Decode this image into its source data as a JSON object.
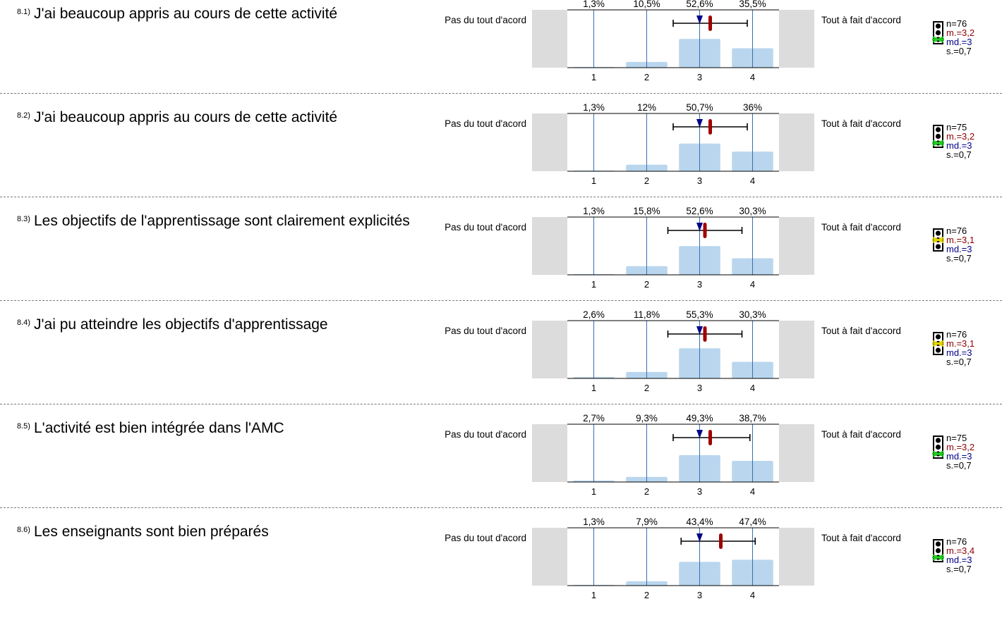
{
  "chart_data": [
    {
      "type": "bar",
      "number": "8.1)",
      "question": "J'ai beaucoup appris au cours de cette activité",
      "left_label": "Pas du tout d'acord",
      "right_label": "Tout à fait d'accord",
      "categories": [
        "1",
        "2",
        "3",
        "4"
      ],
      "values": [
        1.3,
        10.5,
        52.6,
        35.5
      ],
      "value_labels": [
        "1,3%",
        "10,5%",
        "52,6%",
        "35,5%"
      ],
      "mean": 3.2,
      "median": 3,
      "sd": 0.7,
      "interval": [
        2.5,
        3.9
      ],
      "stats": {
        "n": "n=76",
        "mean": "m.=3,2",
        "median": "md.=3",
        "sd": "s.=0,7"
      },
      "indicator": "green",
      "xlim": [
        0.5,
        4.5
      ]
    },
    {
      "type": "bar",
      "number": "8.2)",
      "question": "J'ai beaucoup  appris au cours de cette activité",
      "left_label": "Pas du tout d'acord",
      "right_label": "Tout à fait d'accord",
      "categories": [
        "1",
        "2",
        "3",
        "4"
      ],
      "values": [
        1.3,
        12,
        50.7,
        36
      ],
      "value_labels": [
        "1,3%",
        "12%",
        "50,7%",
        "36%"
      ],
      "mean": 3.2,
      "median": 3,
      "sd": 0.7,
      "interval": [
        2.5,
        3.9
      ],
      "stats": {
        "n": "n=75",
        "mean": "m.=3,2",
        "median": "md.=3",
        "sd": "s.=0,7"
      },
      "indicator": "green",
      "xlim": [
        0.5,
        4.5
      ]
    },
    {
      "type": "bar",
      "number": "8.3)",
      "question": "Les objectifs de l'apprentissage sont clairement explicités",
      "left_label": "Pas du tout d'acord",
      "right_label": "Tout à fait d'accord",
      "categories": [
        "1",
        "2",
        "3",
        "4"
      ],
      "values": [
        1.3,
        15.8,
        52.6,
        30.3
      ],
      "value_labels": [
        "1,3%",
        "15,8%",
        "52,6%",
        "30,3%"
      ],
      "mean": 3.1,
      "median": 3,
      "sd": 0.7,
      "interval": [
        2.4,
        3.8
      ],
      "stats": {
        "n": "n=76",
        "mean": "m.=3,1",
        "median": "md.=3",
        "sd": "s.=0,7"
      },
      "indicator": "yellow",
      "xlim": [
        0.5,
        4.5
      ]
    },
    {
      "type": "bar",
      "number": "8.4)",
      "question": "J'ai pu atteindre les objectifs d'apprentissage",
      "left_label": "Pas du tout d'acord",
      "right_label": "Tout à fait d'accord",
      "categories": [
        "1",
        "2",
        "3",
        "4"
      ],
      "values": [
        2.6,
        11.8,
        55.3,
        30.3
      ],
      "value_labels": [
        "2,6%",
        "11,8%",
        "55,3%",
        "30,3%"
      ],
      "mean": 3.1,
      "median": 3,
      "sd": 0.7,
      "interval": [
        2.4,
        3.8
      ],
      "stats": {
        "n": "n=76",
        "mean": "m.=3,1",
        "median": "md.=3",
        "sd": "s.=0,7"
      },
      "indicator": "yellow",
      "xlim": [
        0.5,
        4.5
      ]
    },
    {
      "type": "bar",
      "number": "8.5)",
      "question": "L'activité est bien intégrée dans l'AMC",
      "left_label": "Pas du tout d'acord",
      "right_label": "Tout à fait d'accord",
      "categories": [
        "1",
        "2",
        "3",
        "4"
      ],
      "values": [
        2.7,
        9.3,
        49.3,
        38.7
      ],
      "value_labels": [
        "2,7%",
        "9,3%",
        "49,3%",
        "38,7%"
      ],
      "mean": 3.2,
      "median": 3,
      "sd": 0.7,
      "interval": [
        2.5,
        3.95
      ],
      "stats": {
        "n": "n=75",
        "mean": "m.=3,2",
        "median": "md.=3",
        "sd": "s.=0,7"
      },
      "indicator": "green",
      "xlim": [
        0.5,
        4.5
      ]
    },
    {
      "type": "bar",
      "number": "8.6)",
      "question": "Les enseignants sont bien préparés",
      "left_label": "Pas du tout d'acord",
      "right_label": "Tout à fait d'accord",
      "categories": [
        "1",
        "2",
        "3",
        "4"
      ],
      "values": [
        1.3,
        7.9,
        43.4,
        47.4
      ],
      "value_labels": [
        "1,3%",
        "7,9%",
        "43,4%",
        "47,4%"
      ],
      "mean": 3.4,
      "median": 3,
      "sd": 0.7,
      "interval": [
        2.65,
        4.05
      ],
      "stats": {
        "n": "n=76",
        "mean": "m.=3,4",
        "median": "md.=3",
        "sd": "s.=0,7"
      },
      "indicator": "green",
      "xlim": [
        0.5,
        4.5
      ]
    }
  ],
  "colors": {
    "bar": "#b9d6ee",
    "gridline": "#3a6fb0",
    "side_panel": "#dcdcdc",
    "mean_marker": "#a00000",
    "median_marker": "#00008b",
    "indicator_green": "#22cc22",
    "indicator_yellow": "#e6d600"
  },
  "icons": {
    "indicator": "traffic-light-icon"
  }
}
